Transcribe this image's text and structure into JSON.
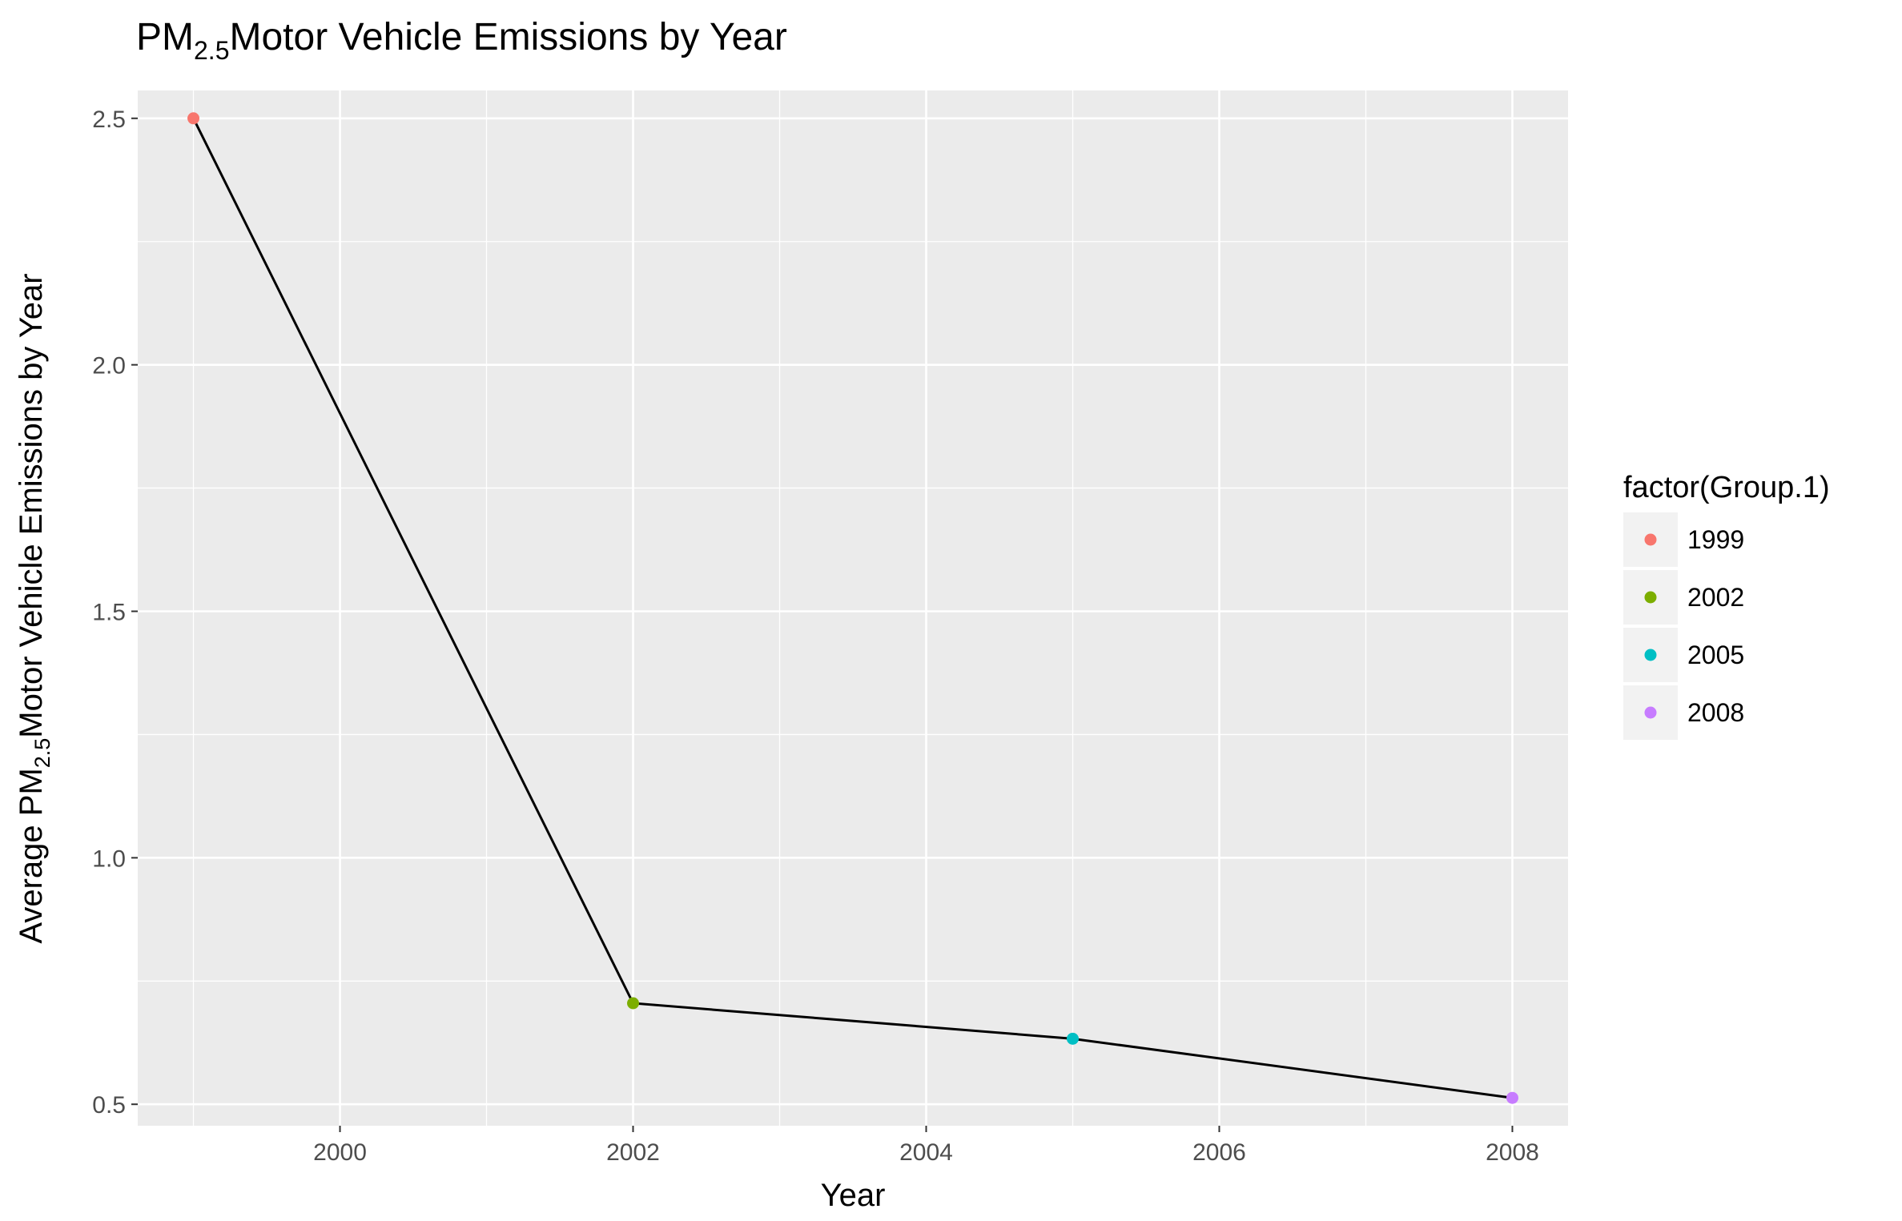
{
  "chart_data": {
    "type": "line",
    "title": {
      "base": "PM",
      "sub": "2.5",
      "rest": "Motor Vehicle Emissions by Year"
    },
    "xlabel": "Year",
    "ylabel": {
      "pre": "Average PM",
      "sub": "2.5",
      "rest": "Motor Vehicle Emissions by Year"
    },
    "x": [
      1999,
      2002,
      2005,
      2008
    ],
    "series": [
      {
        "values": [
          2.5,
          0.705,
          0.633,
          0.513
        ],
        "line_color": "#000000"
      }
    ],
    "point_colors": [
      "#F8766D",
      "#7CAE00",
      "#00BFC4",
      "#C77CFF"
    ],
    "xlim": [
      1998.62,
      2008.38
    ],
    "ylim": [
      0.4565,
      2.5565
    ],
    "x_ticks": [
      2000,
      2002,
      2004,
      2006,
      2008
    ],
    "x_tick_labels": [
      "2000",
      "2002",
      "2004",
      "2006",
      "2008"
    ],
    "y_ticks": [
      0.5,
      1.0,
      1.5,
      2.0,
      2.5
    ],
    "y_tick_labels": [
      "0.5",
      "1.0",
      "1.5",
      "2.0",
      "2.5"
    ],
    "grid": true,
    "legend": {
      "title": "factor(Group.1)",
      "placement": "right",
      "entries": [
        {
          "label": "1999",
          "color": "#F8766D"
        },
        {
          "label": "2002",
          "color": "#7CAE00"
        },
        {
          "label": "2005",
          "color": "#00BFC4"
        },
        {
          "label": "2008",
          "color": "#C77CFF"
        }
      ]
    }
  }
}
